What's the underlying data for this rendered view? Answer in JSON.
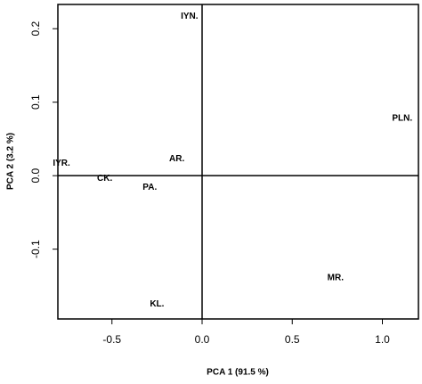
{
  "chart_data": {
    "type": "scatter",
    "x_label": "PCA 1 (91.5 %)",
    "y_label": "PCA 2 (3.2 %)",
    "labels": [
      "IYN.",
      "PLN.",
      "IYR.",
      "AR.",
      "CK.",
      "PA.",
      "MR.",
      "KL."
    ],
    "x": [
      -0.07,
      1.11,
      -0.78,
      -0.14,
      -0.54,
      -0.29,
      0.74,
      -0.25
    ],
    "values": [
      0.217,
      0.078,
      0.017,
      0.023,
      -0.004,
      -0.016,
      -0.139,
      -0.175
    ],
    "xlim": [
      -0.8,
      1.2
    ],
    "ylim": [
      -0.195,
      0.233
    ],
    "xticks": [
      -0.5,
      {
        "value": 0,
        "label": "0.0"
      },
      0.5,
      {
        "value": 1,
        "label": "1.0"
      }
    ],
    "yticks": [
      -0.1,
      {
        "value": 0,
        "label": "0.0"
      },
      0.1,
      0.2
    ],
    "zero_lines": true,
    "color": "#000000"
  }
}
